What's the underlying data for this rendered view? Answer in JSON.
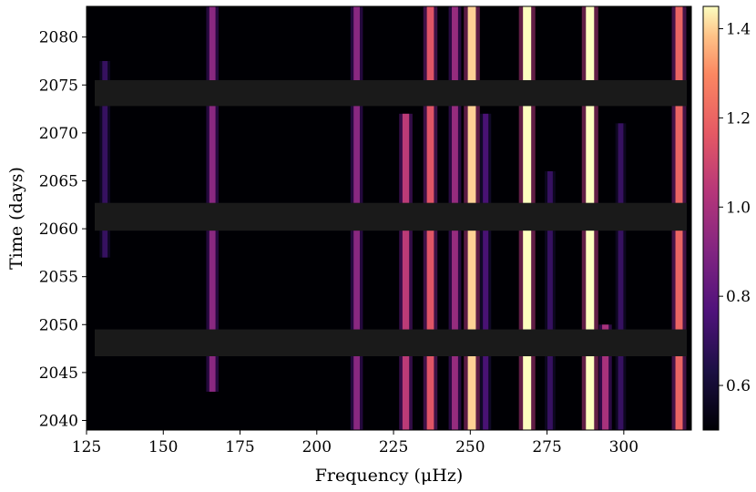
{
  "chart_data": {
    "type": "heatmap",
    "title": "",
    "xlabel": "Frequency (μHz)",
    "ylabel": "Time (days)",
    "xlim": [
      125,
      322
    ],
    "ylim": [
      2039,
      2083.2
    ],
    "xticks": [
      125,
      150,
      175,
      200,
      225,
      250,
      275,
      300
    ],
    "yticks": [
      2040,
      2045,
      2050,
      2055,
      2060,
      2065,
      2070,
      2075,
      2080
    ],
    "colorscale": "magma",
    "colorbar": {
      "range": [
        0.5,
        1.45
      ],
      "ticks": [
        0.6,
        0.8,
        1.0,
        1.2,
        1.4
      ]
    },
    "background_color": "#000004",
    "gap_color": "#1a1a1a",
    "data_gaps": [
      {
        "t_start": 2072.8,
        "t_end": 2075.5
      },
      {
        "t_start": 2059.8,
        "t_end": 2062.7
      },
      {
        "t_start": 2046.7,
        "t_end": 2049.5
      }
    ],
    "ridges": [
      {
        "freq": 131,
        "intensity": 0.7,
        "t_start": 2057,
        "t_end": 2077.5
      },
      {
        "freq": 166,
        "intensity": 0.92,
        "t_start": 2043,
        "t_end": 2083.2
      },
      {
        "freq": 213,
        "intensity": 0.92,
        "t_start": 2039,
        "t_end": 2083.2
      },
      {
        "freq": 229,
        "intensity": 1.05,
        "t_start": 2039,
        "t_end": 2072
      },
      {
        "freq": 237,
        "intensity": 1.15,
        "t_start": 2039,
        "t_end": 2083.2
      },
      {
        "freq": 245,
        "intensity": 0.95,
        "t_start": 2039,
        "t_end": 2083.2
      },
      {
        "freq": 250.5,
        "intensity": 1.4,
        "t_start": 2039,
        "t_end": 2083.2
      },
      {
        "freq": 255,
        "intensity": 0.75,
        "t_start": 2039,
        "t_end": 2072
      },
      {
        "freq": 268.5,
        "intensity": 1.45,
        "t_start": 2039,
        "t_end": 2083.2
      },
      {
        "freq": 276,
        "intensity": 0.7,
        "t_start": 2039,
        "t_end": 2066
      },
      {
        "freq": 289,
        "intensity": 1.45,
        "t_start": 2039,
        "t_end": 2083.2
      },
      {
        "freq": 294,
        "intensity": 1.0,
        "t_start": 2039,
        "t_end": 2050
      },
      {
        "freq": 299,
        "intensity": 0.7,
        "t_start": 2039,
        "t_end": 2071
      },
      {
        "freq": 318,
        "intensity": 1.2,
        "t_start": 2039,
        "t_end": 2083.2
      }
    ]
  }
}
